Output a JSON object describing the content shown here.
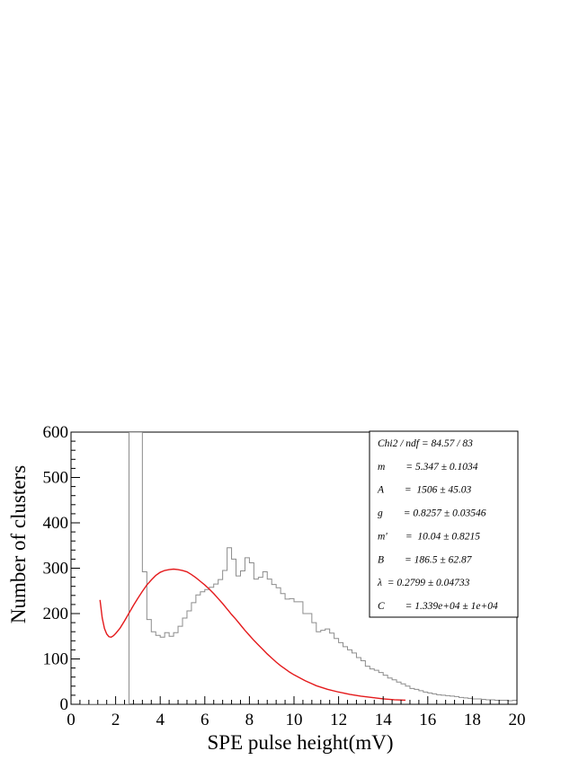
{
  "chart_data": {
    "type": "histogram+line",
    "title": "",
    "xlabel": "SPE pulse height(mV)",
    "ylabel": "Number of clusters",
    "xlim": [
      0,
      20
    ],
    "ylim": [
      0,
      600
    ],
    "x_ticks": [
      0,
      2,
      4,
      6,
      8,
      10,
      12,
      14,
      16,
      18,
      20
    ],
    "y_ticks": [
      0,
      100,
      200,
      300,
      400,
      500,
      600
    ],
    "grid": false,
    "bin_width": 0.2,
    "series": [
      {
        "kind": "histogram",
        "color": "#8c8c8c",
        "bin_start": 0,
        "values": [
          0,
          0,
          0,
          0,
          0,
          0,
          0,
          0,
          0,
          0,
          0,
          0,
          0,
          600,
          600,
          600,
          292,
          187,
          160,
          152,
          148,
          158,
          150,
          158,
          172,
          190,
          206,
          224,
          241,
          248,
          253,
          258,
          265,
          275,
          295,
          345,
          320,
          283,
          294,
          323,
          312,
          276,
          280,
          292,
          276,
          264,
          257,
          244,
          232,
          233,
          226,
          226,
          200,
          200,
          180,
          160,
          163,
          166,
          157,
          145,
          136,
          127,
          120,
          113,
          103,
          96,
          84,
          78,
          75,
          70,
          64,
          58,
          54,
          49,
          45,
          40,
          35,
          33,
          30,
          27,
          25,
          23,
          21,
          20,
          19,
          18,
          17,
          15,
          14,
          13,
          12,
          12,
          11,
          10,
          10,
          9,
          9,
          9,
          8,
          9,
          9,
          8,
          8,
          7,
          8,
          10,
          8,
          7,
          8,
          7,
          7,
          6,
          6,
          7,
          6,
          8,
          6,
          5,
          6,
          5,
          5,
          5,
          5,
          5,
          5,
          4,
          4,
          4,
          4,
          4,
          4
        ]
      },
      {
        "kind": "fit",
        "color": "#e41a1c",
        "x": [
          1.3,
          1.4,
          1.5,
          1.6,
          1.7,
          1.8,
          1.9,
          2.0,
          2.2,
          2.4,
          2.6,
          2.8,
          3.0,
          3.2,
          3.4,
          3.6,
          3.8,
          4.0,
          4.2,
          4.4,
          4.6,
          4.8,
          5.0,
          5.2,
          5.4,
          5.6,
          5.8,
          6.0,
          6.2,
          6.4,
          6.6,
          6.8,
          7.0,
          7.2,
          7.4,
          7.6,
          7.8,
          8.0,
          8.2,
          8.4,
          8.6,
          8.8,
          9.0,
          9.2,
          9.4,
          9.6,
          9.8,
          10.0,
          10.5,
          11.0,
          11.5,
          12.0,
          12.5,
          13.0,
          13.5,
          14.0,
          14.5,
          15.0
        ],
        "y": [
          230,
          190,
          167,
          155,
          149,
          148,
          151,
          156,
          168,
          184,
          201,
          218,
          234,
          249,
          263,
          274,
          284,
          291,
          295,
          297,
          298,
          297,
          295,
          292,
          286,
          279,
          271,
          263,
          254,
          244,
          233,
          222,
          210,
          198,
          187,
          175,
          163,
          152,
          141,
          131,
          121,
          111,
          102,
          93,
          85,
          78,
          71,
          65,
          52,
          41,
          33,
          27,
          22,
          18,
          15,
          12,
          10,
          9
        ]
      }
    ],
    "stats_box": {
      "lines": [
        "Chi2 / ndf = 84.57 / 83",
        "m        = 5.347 ± 0.1034",
        "A        =  1506 ± 45.03",
        "g        = 0.8257 ± 0.03546",
        "m'       =  10.04 ± 0.8215",
        "B        = 186.5 ± 62.87",
        "λ  = 0.2799 ± 0.04733",
        "C        = 1.339e+04 ± 1e+04"
      ]
    }
  }
}
